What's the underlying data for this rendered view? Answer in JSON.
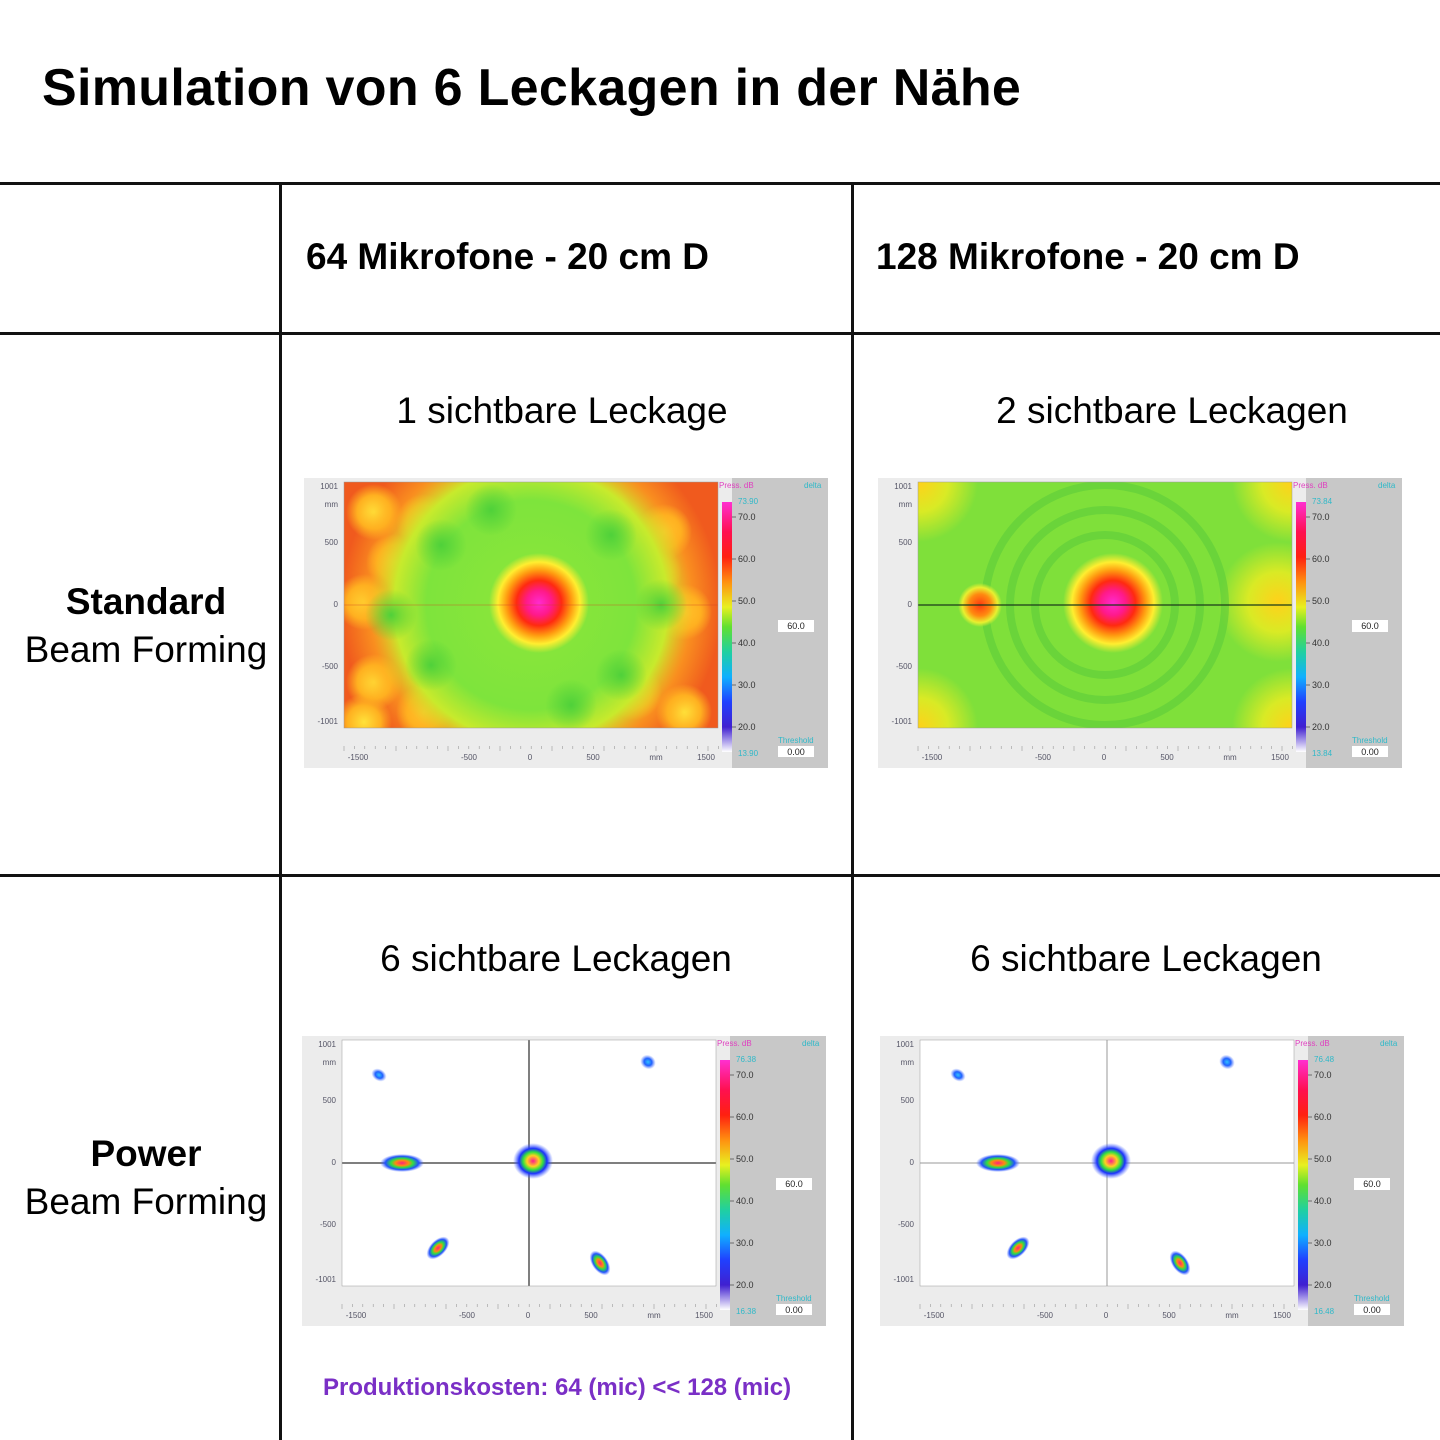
{
  "title": "Simulation von 6 Leckagen in der Nähe",
  "columns": [
    {
      "label": "64 Mikrofone - 20 cm D"
    },
    {
      "label": "128 Mikrofone - 20 cm D"
    }
  ],
  "rows": [
    {
      "label_bold": "Standard",
      "label": "Beam Forming"
    },
    {
      "label_bold": "Power",
      "label": "Beam Forming"
    }
  ],
  "cells": {
    "standard_64": {
      "caption": "1 sichtbare Leckage",
      "max_label": "73.90",
      "min_label": "13.90"
    },
    "standard_128": {
      "caption": "2 sichtbare Leckagen",
      "max_label": "73.84",
      "min_label": "13.84"
    },
    "power_64": {
      "caption": "6 sichtbare Leckagen",
      "max_label": "76.38",
      "min_label": "16.38"
    },
    "power_128": {
      "caption": "6 sichtbare Leckagen",
      "max_label": "76.48",
      "min_label": "16.48"
    }
  },
  "plot_common": {
    "y_ticks": [
      "1001",
      "mm",
      "500",
      "0",
      "-500",
      "-1001"
    ],
    "x_ticks": [
      "-1500",
      "-500",
      "0",
      "500",
      "mm",
      "1500"
    ],
    "scale_title": "Press. dB",
    "delta_label": "delta",
    "scale_ticks": [
      "70.0",
      "60.0",
      "50.0",
      "40.0",
      "30.0",
      "20.0"
    ],
    "range_value": "60.0",
    "threshold_label": "Threshold",
    "threshold_value": "0.00"
  },
  "footer": "Produktionskosten: 64 (mic) << 128 (mic)",
  "colors": {
    "footer": "#7a2fc6",
    "scale_text": "#2fb9c9",
    "scale_title": "#e040c0"
  }
}
